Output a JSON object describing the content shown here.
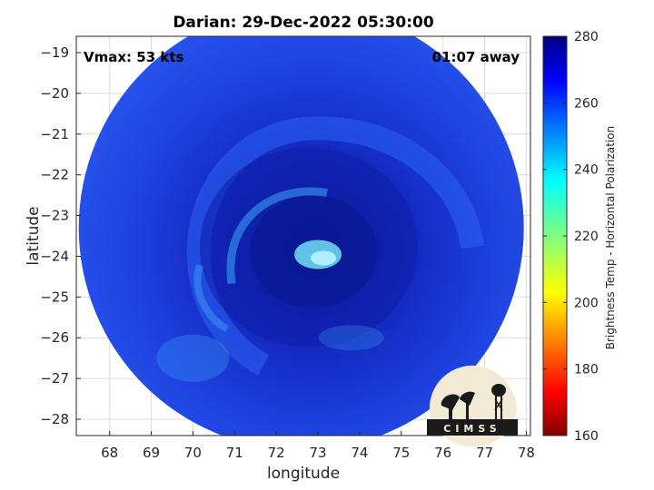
{
  "chart_data": {
    "type": "heatmap",
    "title": "Darian: 29-Dec-2022 05:30:00",
    "xlabel": "longitude",
    "ylabel": "latitude",
    "xlim": [
      67.2,
      78.1
    ],
    "ylim": [
      -28.4,
      -18.6
    ],
    "x_ticks": [
      68,
      69,
      70,
      71,
      72,
      73,
      74,
      75,
      76,
      77,
      78
    ],
    "y_ticks": [
      -19,
      -20,
      -21,
      -22,
      -23,
      -24,
      -25,
      -26,
      -27,
      -28
    ],
    "grid": true,
    "annotations": {
      "vmax": "Vmax: 53 kts",
      "away": "01:07 away"
    },
    "colorbar": {
      "label": "Brightness Temp - Horizontal Polarization",
      "min": 160,
      "max": 280,
      "ticks": [
        280,
        260,
        240,
        220,
        200,
        180,
        160
      ],
      "colormap": "jet"
    },
    "storm_center": {
      "lon": 73.0,
      "lat": -24.0
    },
    "swath_center": {
      "lon": 72.6,
      "lat": -23.3
    },
    "swath_radius_deg": 5.4
  },
  "logo": {
    "text": "CIMSS"
  },
  "colors": {
    "background": "#2244e6",
    "dark_core": "#0c1ea8",
    "bright_eye": "#6ee0f5",
    "cyan_band": "#3b9bf5"
  }
}
